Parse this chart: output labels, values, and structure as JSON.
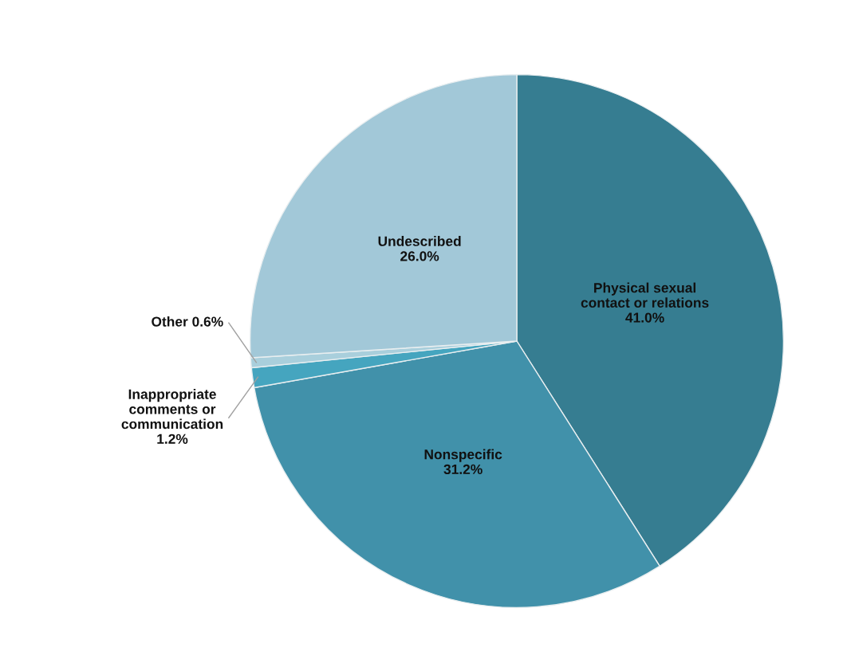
{
  "chart_data": {
    "type": "pie",
    "categories": [
      "Physical sexual\ncontact or relations",
      "Nonspecific",
      "Inappropriate\ncomments or\ncommunication",
      "Other",
      "Undescribed"
    ],
    "values": [
      41.0,
      31.2,
      1.2,
      0.6,
      26.0
    ],
    "value_labels": [
      "41.0%",
      "31.2%",
      "1.2%",
      "0.6%",
      "26.0%"
    ],
    "colors": [
      "#367d91",
      "#4191aa",
      "#45a5bf",
      "#a9cfdc",
      "#a2c8d8"
    ],
    "legend": false
  }
}
